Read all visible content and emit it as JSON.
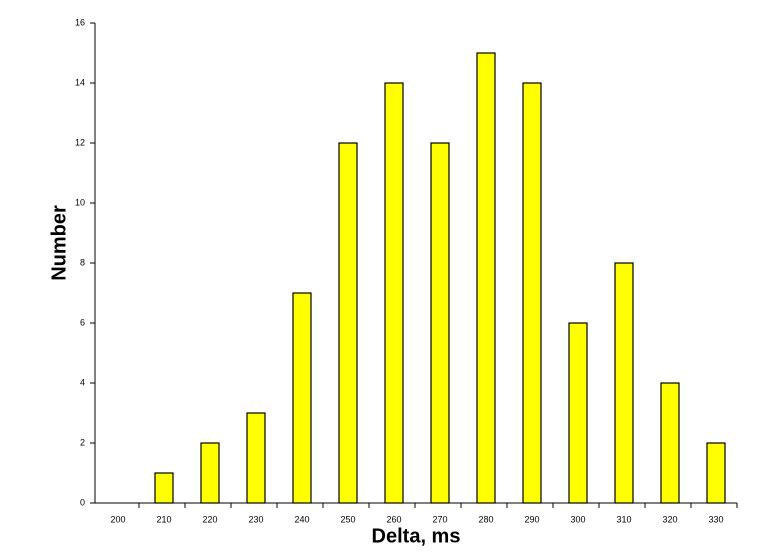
{
  "chart_data": {
    "type": "bar",
    "x_label": "Delta, ms",
    "y_label": "Number",
    "categories": [
      "200",
      "210",
      "220",
      "230",
      "240",
      "250",
      "260",
      "270",
      "280",
      "290",
      "300",
      "310",
      "320",
      "330"
    ],
    "values": [
      0,
      1,
      2,
      3,
      7,
      12,
      14,
      12,
      15,
      14,
      6,
      8,
      4,
      2
    ],
    "color": "#ffff00",
    "ylim": [
      0,
      16
    ],
    "yticks": [
      0,
      2,
      4,
      6,
      8,
      10,
      12,
      14,
      16
    ],
    "grid": false
  }
}
